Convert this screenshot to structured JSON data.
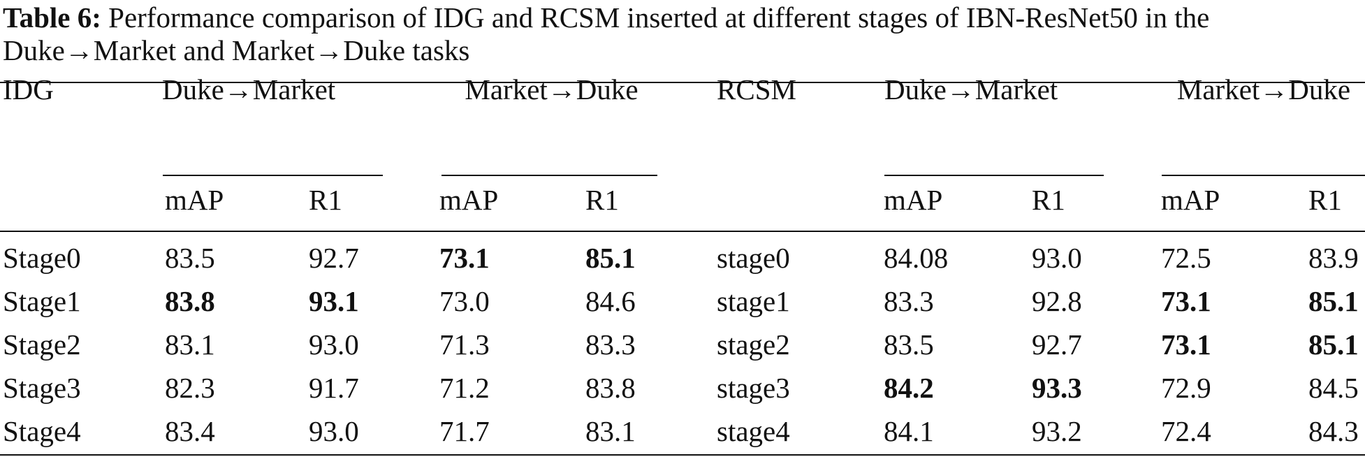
{
  "caption": {
    "label": "Table 6:",
    "text": "Performance comparison of IDG and RCSM inserted at different stages of IBN-ResNet50 in the Duke→Market and Market→Duke tasks"
  },
  "header": {
    "idg": "IDG",
    "rcsm": "RCSM",
    "groups": [
      "Duke→Market",
      "Market→Duke",
      "Duke→Market",
      "Market→Duke"
    ],
    "metrics": [
      "mAP",
      "R1",
      "mAP",
      "R1",
      "mAP",
      "R1",
      "mAP",
      "R1"
    ]
  },
  "rows": [
    {
      "idg": "Stage0",
      "idg_dm_map": "83.5",
      "idg_dm_r1": "92.7",
      "idg_md_map": "73.1",
      "idg_md_r1": "85.1",
      "rcsm": "stage0",
      "rcsm_dm_map": "84.08",
      "rcsm_dm_r1": "93.0",
      "rcsm_md_map": "72.5",
      "rcsm_md_r1": "83.9"
    },
    {
      "idg": "Stage1",
      "idg_dm_map": "83.8",
      "idg_dm_r1": "93.1",
      "idg_md_map": "73.0",
      "idg_md_r1": "84.6",
      "rcsm": "stage1",
      "rcsm_dm_map": "83.3",
      "rcsm_dm_r1": "92.8",
      "rcsm_md_map": "73.1",
      "rcsm_md_r1": "85.1"
    },
    {
      "idg": "Stage2",
      "idg_dm_map": "83.1",
      "idg_dm_r1": "93.0",
      "idg_md_map": "71.3",
      "idg_md_r1": "83.3",
      "rcsm": "stage2",
      "rcsm_dm_map": "83.5",
      "rcsm_dm_r1": "92.7",
      "rcsm_md_map": "73.1",
      "rcsm_md_r1": "85.1"
    },
    {
      "idg": "Stage3",
      "idg_dm_map": "82.3",
      "idg_dm_r1": "91.7",
      "idg_md_map": "71.2",
      "idg_md_r1": "83.8",
      "rcsm": "stage3",
      "rcsm_dm_map": "84.2",
      "rcsm_dm_r1": "93.3",
      "rcsm_md_map": "72.9",
      "rcsm_md_r1": "84.5"
    },
    {
      "idg": "Stage4",
      "idg_dm_map": "83.4",
      "idg_dm_r1": "93.0",
      "idg_md_map": "71.7",
      "idg_md_r1": "83.1",
      "rcsm": "stage4",
      "rcsm_dm_map": "84.1",
      "rcsm_dm_r1": "93.2",
      "rcsm_md_map": "72.4",
      "rcsm_md_r1": "84.3"
    }
  ]
}
